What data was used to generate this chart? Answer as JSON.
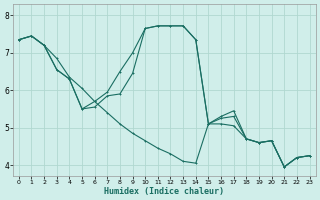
{
  "xlabel": "Humidex (Indice chaleur)",
  "background_color": "#d0eeea",
  "grid_color": "#b0d8d0",
  "line_color": "#1a6e62",
  "xlim": [
    -0.5,
    23.5
  ],
  "ylim": [
    3.7,
    8.3
  ],
  "yticks": [
    4,
    5,
    6,
    7,
    8
  ],
  "xticks": [
    0,
    1,
    2,
    3,
    4,
    5,
    6,
    7,
    8,
    9,
    10,
    11,
    12,
    13,
    14,
    15,
    16,
    17,
    18,
    19,
    20,
    21,
    22,
    23
  ],
  "line1_x": [
    0,
    1,
    2,
    3,
    4,
    5,
    6,
    7,
    8,
    9,
    10,
    11,
    12,
    13,
    14,
    15,
    16,
    17,
    18,
    19,
    20,
    21,
    22,
    23
  ],
  "line1_y": [
    7.35,
    7.45,
    7.2,
    6.85,
    6.35,
    6.05,
    5.7,
    5.4,
    5.1,
    4.85,
    4.65,
    4.45,
    4.3,
    4.1,
    4.05,
    5.1,
    5.3,
    5.45,
    4.7,
    4.6,
    4.65,
    3.95,
    4.2,
    4.25
  ],
  "line2_x": [
    0,
    1,
    2,
    3,
    4,
    5,
    6,
    7,
    8,
    9,
    10,
    11,
    12,
    13,
    14,
    15,
    16,
    17,
    18,
    19,
    20,
    21,
    22,
    23
  ],
  "line2_y": [
    7.35,
    7.45,
    7.2,
    6.55,
    6.3,
    5.5,
    5.7,
    5.95,
    6.5,
    7.0,
    7.65,
    7.72,
    7.72,
    7.72,
    7.35,
    5.1,
    5.25,
    5.3,
    4.7,
    4.6,
    4.65,
    3.95,
    4.2,
    4.25
  ],
  "line3_x": [
    0,
    1,
    2,
    3,
    4,
    5,
    6,
    7,
    8,
    9,
    10,
    11,
    12,
    13,
    14,
    15,
    16,
    17,
    18,
    19,
    20,
    21,
    22,
    23
  ],
  "line3_y": [
    7.35,
    7.45,
    7.2,
    6.55,
    6.3,
    5.5,
    5.55,
    5.85,
    5.9,
    6.45,
    7.65,
    7.72,
    7.72,
    7.72,
    7.35,
    5.1,
    5.1,
    5.05,
    4.7,
    4.6,
    4.65,
    3.95,
    4.2,
    4.25
  ]
}
